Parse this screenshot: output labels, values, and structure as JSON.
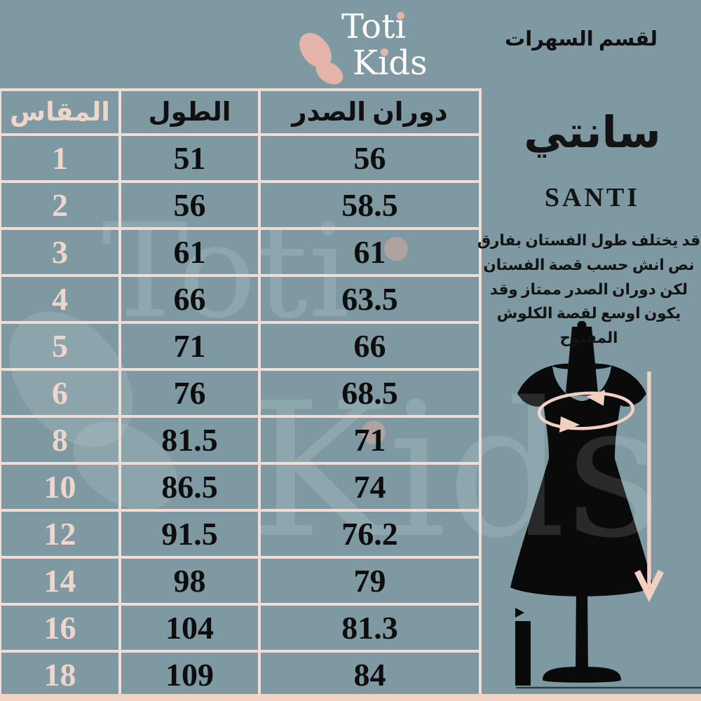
{
  "colors": {
    "background": "#7e99a2",
    "table_border_pink": "#f3dcd3",
    "size_text_pink": "#eed6cb",
    "logo_pink": "#e5b4a8",
    "arrow_pink": "#f1cfc1",
    "text_dark": "#101010",
    "logo_white": "#ffffff"
  },
  "logo": {
    "word1": "Toti",
    "word2": "Kids"
  },
  "top_right_label": "لقسم السهرات",
  "side": {
    "title_arabic": "سانتي",
    "title_latin": "SANTI",
    "note_arabic": "قد يختلف طول الفستان بفارق نص انش حسب قصة الفستان لكن دوران الصدر ممتاز وقد يكون اوسع لقصة الكلوش المفتوح"
  },
  "watermark": {
    "word1": "Toti",
    "word2": "Kids"
  },
  "chart_data": {
    "type": "table",
    "title_arabic": "سانتي",
    "title_latin": "SANTI",
    "columns": [
      "المقاس",
      "الطول",
      "دوران الصدر"
    ],
    "rows": [
      [
        "1",
        "51",
        "56"
      ],
      [
        "2",
        "56",
        "58.5"
      ],
      [
        "3",
        "61",
        "61"
      ],
      [
        "4",
        "66",
        "63.5"
      ],
      [
        "5",
        "71",
        "66"
      ],
      [
        "6",
        "76",
        "68.5"
      ],
      [
        "8",
        "81.5",
        "71"
      ],
      [
        "10",
        "86.5",
        "74"
      ],
      [
        "12",
        "91.5",
        "76.2"
      ],
      [
        "14",
        "98",
        "79"
      ],
      [
        "16",
        "104",
        "81.3"
      ],
      [
        "18",
        "109",
        "84"
      ]
    ]
  }
}
